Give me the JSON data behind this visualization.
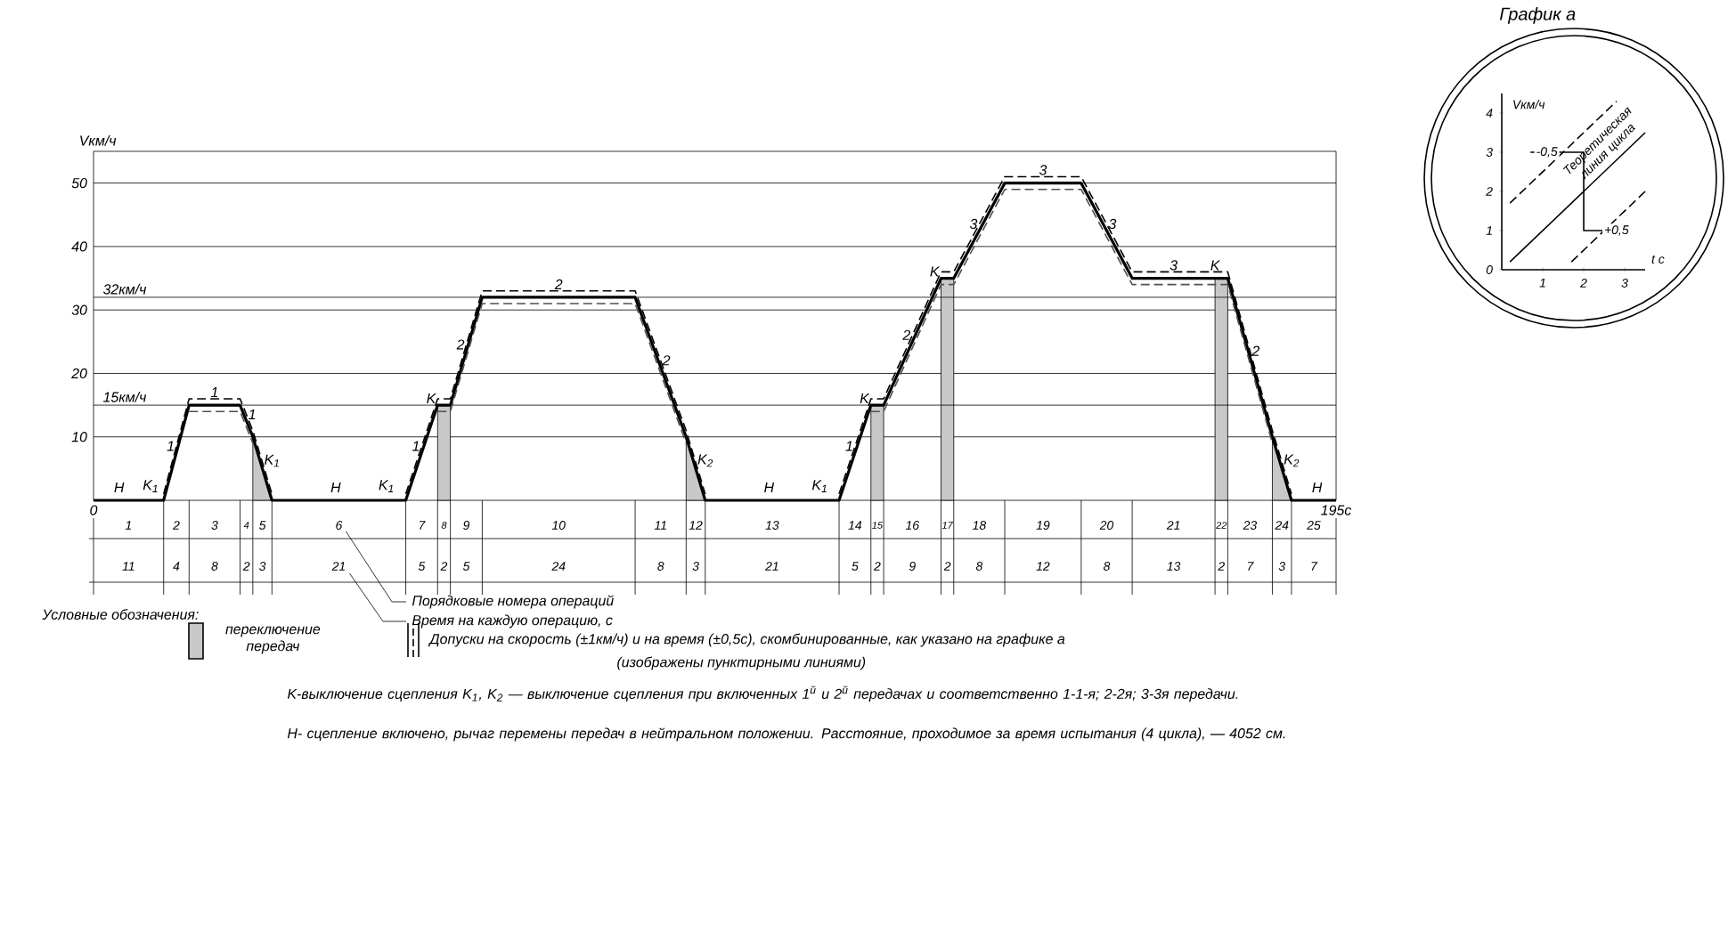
{
  "chart_data": [
    {
      "type": "line",
      "ylabel": "Vкм/ч",
      "xlim": [
        0,
        195
      ],
      "ylim": [
        0,
        55
      ],
      "yticks": [
        10,
        20,
        30,
        40,
        50
      ],
      "grid": "y",
      "xticks": [
        {
          "value": 0,
          "label": "0"
        },
        {
          "value": 195,
          "label": "195с"
        }
      ],
      "series": [
        {
          "color": "#000000",
          "x": [
            0,
            11,
            15,
            23,
            25,
            28,
            49,
            54,
            56,
            61,
            85,
            93,
            96,
            117,
            122,
            124,
            133,
            135,
            143,
            155,
            163,
            176,
            178,
            185,
            188,
            195
          ],
          "values": [
            0,
            0,
            15,
            15,
            10,
            0,
            0,
            15,
            15,
            32,
            32,
            10,
            0,
            0,
            15,
            15,
            35,
            35,
            50,
            50,
            35,
            35,
            35,
            10,
            0,
            0
          ]
        },
        {
          "color": "#000000",
          "line_style": "dashed",
          "x": [
            11,
            15,
            23,
            25,
            28,
            38,
            49,
            54,
            56,
            61,
            85,
            93,
            96,
            106,
            117,
            122,
            124,
            133,
            135,
            143,
            155,
            163,
            176,
            178,
            185,
            188
          ],
          "values": [
            1,
            16,
            16,
            11,
            1,
            null,
            1,
            16,
            16,
            33,
            33,
            11,
            1,
            null,
            1,
            16,
            16,
            36,
            36,
            51,
            51,
            36,
            36,
            36,
            11,
            1
          ]
        },
        {
          "color": "#505050",
          "line_style": "dashed",
          "x": [
            15,
            23,
            25,
            40,
            54,
            56,
            61,
            85,
            93,
            110,
            122,
            124,
            133,
            135,
            143,
            155,
            163,
            176,
            178,
            185
          ],
          "values": [
            14,
            14,
            9,
            null,
            14,
            14,
            31,
            31,
            9,
            null,
            14,
            14,
            34,
            34,
            49,
            49,
            34,
            34,
            34,
            9
          ]
        },
        {
          "type": "area",
          "color": "#c8c8c8",
          "x": [
            25,
            28
          ],
          "values": [
            10,
            0
          ]
        },
        {
          "type": "area",
          "color": "#c8c8c8",
          "x": [
            54,
            56
          ],
          "values": [
            15,
            15
          ]
        },
        {
          "type": "area",
          "color": "#c8c8c8",
          "x": [
            93,
            96
          ],
          "values": [
            10,
            0
          ]
        },
        {
          "type": "area",
          "color": "#c8c8c8",
          "x": [
            122,
            124
          ],
          "values": [
            15,
            15
          ]
        },
        {
          "type": "area",
          "color": "#c8c8c8",
          "x": [
            133,
            135
          ],
          "values": [
            35,
            35
          ]
        },
        {
          "type": "area",
          "color": "#c8c8c8",
          "x": [
            176,
            178
          ],
          "values": [
            35,
            35
          ]
        },
        {
          "type": "area",
          "color": "#c8c8c8",
          "x": [
            185,
            188
          ],
          "values": [
            10,
            0
          ]
        }
      ],
      "ref_lines": [
        {
          "axis": "y",
          "value": 15,
          "label": "15км/ч"
        },
        {
          "axis": "y",
          "value": 32,
          "label": "32км/ч"
        }
      ],
      "annotations": [
        "Порядковые номера операций",
        "Время на каждую операцию, с",
        "Условные обозначения:",
        "переключение передач",
        "Допуски на скорость (±1км/ч) и на время (±0,5с), скомбинированные, как указано на графике а",
        "(изображены пунктирными линиями)",
        "K-выключение сцепления K$_{1}$, K$_{2}$ — выключение сцепления при включенных 1$^{й}$ и 2$^{й}$ передачах и соответственно 1-1-я; 2-2я; 3-3я передачи.",
        "H- сцепление включено, рычаг перемены передач в нейтральном положении. Расстояние, проходимое за время испытания (4 цикла), — 4052 см.",
        {
          "text": "H",
          "x": 4,
          "y": 0
        },
        {
          "text": "K$_{1}$",
          "x": 9,
          "y": 0
        },
        {
          "text": "1",
          "x": 13,
          "y": 7.5
        },
        {
          "text": "1",
          "x": 19,
          "y": 15
        },
        {
          "text": "1",
          "x": 24,
          "y": 12.5
        },
        {
          "text": "K$_{1}$",
          "x": 26.5,
          "y": 5
        },
        {
          "text": "H",
          "x": 38,
          "y": 0
        },
        {
          "text": "K$_{1}$",
          "x": 46,
          "y": 0
        },
        {
          "text": "1",
          "x": 51.5,
          "y": 7.5
        },
        {
          "text": "K",
          "x": 54,
          "y": 15
        },
        {
          "text": "2",
          "x": 58.5,
          "y": 23.5
        },
        {
          "text": "2",
          "x": 73,
          "y": 32
        },
        {
          "text": "2",
          "x": 89,
          "y": 21
        },
        {
          "text": "K$_{2}$",
          "x": 94.5,
          "y": 5
        },
        {
          "text": "H",
          "x": 106,
          "y": 0
        },
        {
          "text": "K$_{1}$",
          "x": 114,
          "y": 0
        },
        {
          "text": "1",
          "x": 119.5,
          "y": 7.5
        },
        {
          "text": "K",
          "x": 122,
          "y": 15
        },
        {
          "text": "2",
          "x": 128.5,
          "y": 25
        },
        {
          "text": "K",
          "x": 133,
          "y": 35
        },
        {
          "text": "3",
          "x": 139,
          "y": 42.5
        },
        {
          "text": "3",
          "x": 149,
          "y": 50
        },
        {
          "text": "3",
          "x": 159,
          "y": 42.5
        },
        {
          "text": "3",
          "x": 169.5,
          "y": 35
        },
        {
          "text": "K",
          "x": 176,
          "y": 35
        },
        {
          "text": "2",
          "x": 181.5,
          "y": 22.5
        },
        {
          "text": "K$_{2}$",
          "x": 186.5,
          "y": 5
        },
        {
          "text": "H",
          "x": 192,
          "y": 0
        }
      ]
    },
    {
      "type": "line",
      "title": "График а",
      "xlabel": "t с",
      "ylabel": "Vкм/ч",
      "xlim": [
        0,
        3.5
      ],
      "ylim": [
        0,
        4.5
      ],
      "xticks": [
        1,
        2,
        3
      ],
      "yticks": [
        0,
        1,
        2,
        3,
        4
      ],
      "series": [
        {
          "name": "Теоретическая линия цикла",
          "color": "#000000",
          "x": [
            0.2,
            3.5
          ],
          "values": [
            0.2,
            3.5
          ]
        },
        {
          "color": "#000000",
          "line_style": "dashed",
          "x": [
            0.2,
            2.8
          ],
          "values": [
            1.7,
            4.3
          ]
        },
        {
          "color": "#000000",
          "line_style": "dashed",
          "x": [
            1.7,
            3.5
          ],
          "values": [
            0.2,
            2
          ]
        },
        {
          "color": "#000000",
          "x": [
            0.7,
            2,
            2,
            2.5
          ],
          "values": [
            3,
            3,
            1,
            1
          ]
        }
      ],
      "annotations": [
        {
          "text": "-0,5",
          "x": 1.1,
          "y": 3
        },
        {
          "text": "+0,5",
          "x": 2.8,
          "y": 1
        }
      ]
    },
    {
      "type": "other",
      "categories": [
        "1",
        "2",
        "3",
        "4",
        "5",
        "6",
        "7",
        "8",
        "9",
        "10",
        "11",
        "12",
        "13",
        "14",
        "15",
        "16",
        "17",
        "18",
        "19",
        "20",
        "21",
        "22",
        "23",
        "24",
        "25"
      ],
      "values": [
        11,
        4,
        8,
        2,
        3,
        21,
        5,
        2,
        5,
        24,
        8,
        3,
        21,
        5,
        2,
        9,
        2,
        8,
        12,
        8,
        13,
        2,
        7,
        3,
        7
      ],
      "data_labels": true
    }
  ]
}
